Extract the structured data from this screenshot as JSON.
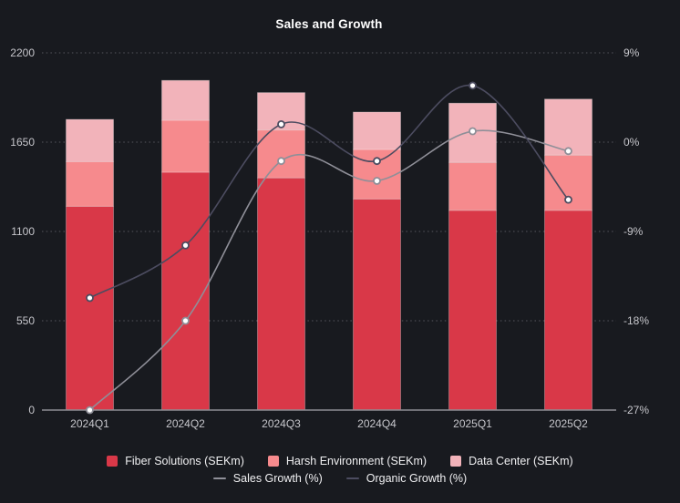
{
  "chart_data": {
    "type": "combo-stacked-bar-line",
    "title": "Sales and Growth",
    "categories": [
      "2024Q1",
      "2024Q2",
      "2024Q3",
      "2024Q4",
      "2025Q1",
      "2025Q2"
    ],
    "bar_series": [
      {
        "name": "Fiber Solutions (SEKm)",
        "color": "#d93848",
        "values": [
          1255,
          1465,
          1430,
          1300,
          1230,
          1230
        ]
      },
      {
        "name": "Harsh Environment (SEKm)",
        "color": "#f68a8d",
        "values": [
          275,
          320,
          295,
          305,
          295,
          340
        ]
      },
      {
        "name": "Data Center (SEKm)",
        "color": "#f2b3ba",
        "values": [
          260,
          245,
          230,
          230,
          365,
          345
        ]
      }
    ],
    "line_series": [
      {
        "name": "Sales Growth (%)",
        "color": "#8f8f98",
        "axis": "right",
        "values": [
          -27,
          -18,
          -1.9,
          -3.9,
          1.1,
          -0.9
        ]
      },
      {
        "name": "Organic Growth (%)",
        "color": "#4c4c60",
        "axis": "right",
        "values": [
          -15.7,
          -10.4,
          1.8,
          -1.9,
          5.7,
          -5.8
        ]
      }
    ],
    "left_axis": {
      "min": 0,
      "max": 2200,
      "ticks": [
        0,
        550,
        1100,
        1650,
        2200
      ],
      "tick_labels": [
        "0",
        "550",
        "1100",
        "1650",
        "2200"
      ]
    },
    "right_axis": {
      "min": -27,
      "max": 9,
      "ticks": [
        -27,
        -18,
        -9,
        0,
        9
      ],
      "tick_labels": [
        "-27%",
        "-18%",
        "-9%",
        "0%",
        "9%"
      ]
    },
    "grid": "dotted-horizontal",
    "legend_position": "bottom",
    "background": "#181a1f",
    "axis_label_color": "#c6c6cb",
    "grid_color": "#56565e",
    "zero_line_color": "#8d8d93",
    "marker_fill": "#ffffff"
  }
}
